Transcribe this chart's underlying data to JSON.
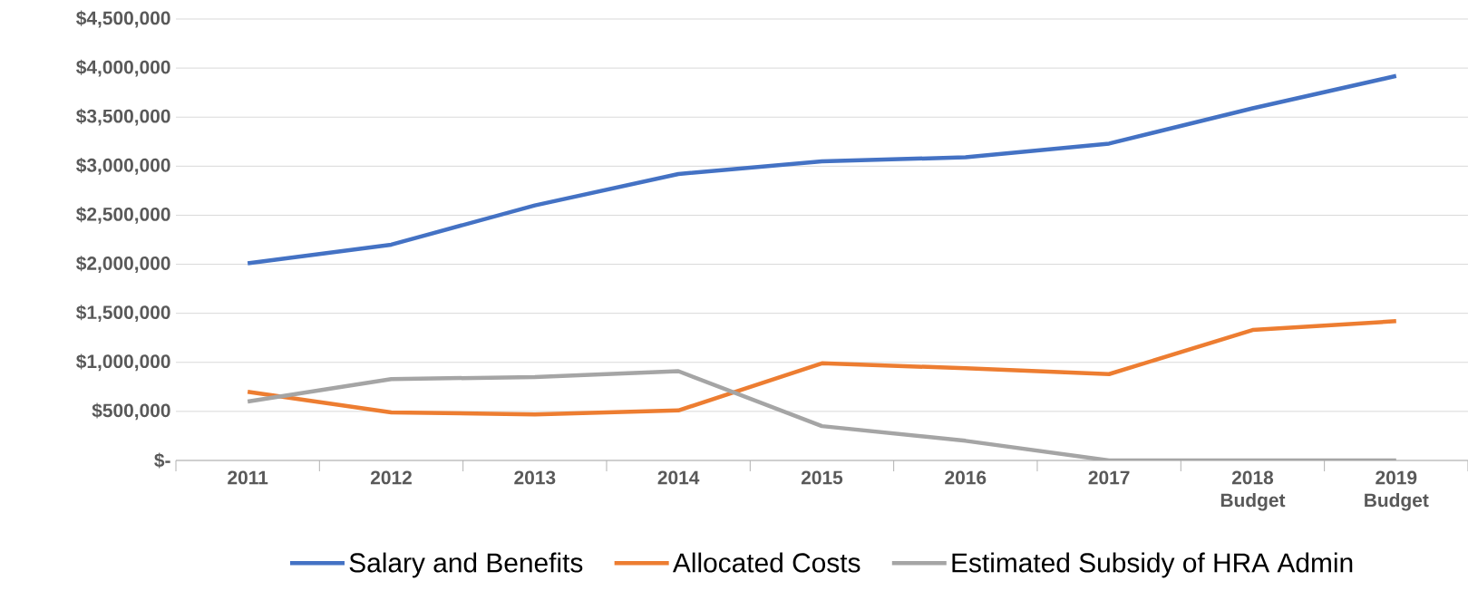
{
  "chart_data": {
    "type": "line",
    "categories": [
      "2011",
      "2012",
      "2013",
      "2014",
      "2015",
      "2016",
      "2017",
      "2018 Budget",
      "2019 Budget"
    ],
    "series": [
      {
        "name": "Salary and Benefits",
        "color": "#4472c4",
        "values": [
          2010000,
          2200000,
          2600000,
          2920000,
          3050000,
          3090000,
          3230000,
          3590000,
          3920000
        ]
      },
      {
        "name": "Allocated Costs",
        "color": "#ed7d31",
        "values": [
          700000,
          490000,
          470000,
          510000,
          990000,
          940000,
          880000,
          1330000,
          1420000
        ]
      },
      {
        "name": "Estimated Subsidy of HRA Admin",
        "color": "#a5a5a5",
        "values": [
          600000,
          830000,
          850000,
          910000,
          350000,
          200000,
          0,
          0,
          0
        ]
      }
    ],
    "ylim": [
      0,
      4500000
    ],
    "yticks": [
      {
        "value": 0,
        "label": "$-"
      },
      {
        "value": 500000,
        "label": "$500,000"
      },
      {
        "value": 1000000,
        "label": "$1,000,000"
      },
      {
        "value": 1500000,
        "label": "$1,500,000"
      },
      {
        "value": 2000000,
        "label": "$2,000,000"
      },
      {
        "value": 2500000,
        "label": "$2,500,000"
      },
      {
        "value": 3000000,
        "label": "$3,000,000"
      },
      {
        "value": 3500000,
        "label": "$3,500,000"
      },
      {
        "value": 4000000,
        "label": "$4,000,000"
      },
      {
        "value": 4500000,
        "label": "$4,500,000"
      }
    ],
    "grid": "y",
    "legend": "bottom",
    "marker": "none",
    "line_style": "solid"
  }
}
